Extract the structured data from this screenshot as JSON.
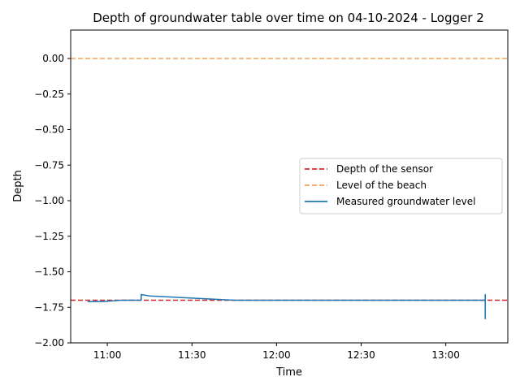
{
  "chart_data": {
    "type": "line",
    "title": "Depth of groundwater table over time on 04-10-2024 - Logger 2",
    "xlabel": "Time",
    "ylabel": "Depth",
    "x_range": [
      "10:47",
      "13:22"
    ],
    "ylim": [
      -2.0,
      0.2
    ],
    "x_ticks": [
      "11:00",
      "11:30",
      "12:00",
      "12:30",
      "13:00"
    ],
    "y_ticks": [
      "0.00",
      "−0.25",
      "−0.50",
      "−0.75",
      "−1.00",
      "−1.25",
      "−1.50",
      "−1.75",
      "−2.00"
    ],
    "y_tick_values": [
      0.0,
      -0.25,
      -0.5,
      -0.75,
      -1.0,
      -1.25,
      -1.5,
      -1.75,
      -2.0
    ],
    "grid": false,
    "legend_position": "center-right",
    "reference_lines": [
      {
        "name": "Depth of the sensor",
        "y": -1.7,
        "color": "#d62728",
        "style": "dashed"
      },
      {
        "name": "Level of the beach",
        "y": 0.0,
        "color": "#f4a259",
        "style": "dashed"
      }
    ],
    "series": [
      {
        "name": "Measured groundwater level",
        "color": "#1f77b4",
        "x": [
          "10:53",
          "10:58",
          "11:05",
          "11:10",
          "11:12",
          "11:12",
          "11:15",
          "11:20",
          "11:25",
          "11:30",
          "11:35",
          "11:40",
          "11:45",
          "12:00",
          "12:30",
          "13:00",
          "13:14",
          "13:14",
          "13:14",
          "13:14"
        ],
        "y": [
          -1.71,
          -1.71,
          -1.7,
          -1.7,
          -1.7,
          -1.66,
          -1.67,
          -1.675,
          -1.68,
          -1.685,
          -1.69,
          -1.695,
          -1.7,
          -1.7,
          -1.7,
          -1.7,
          -1.7,
          -1.66,
          -1.83,
          -1.7
        ]
      }
    ]
  }
}
